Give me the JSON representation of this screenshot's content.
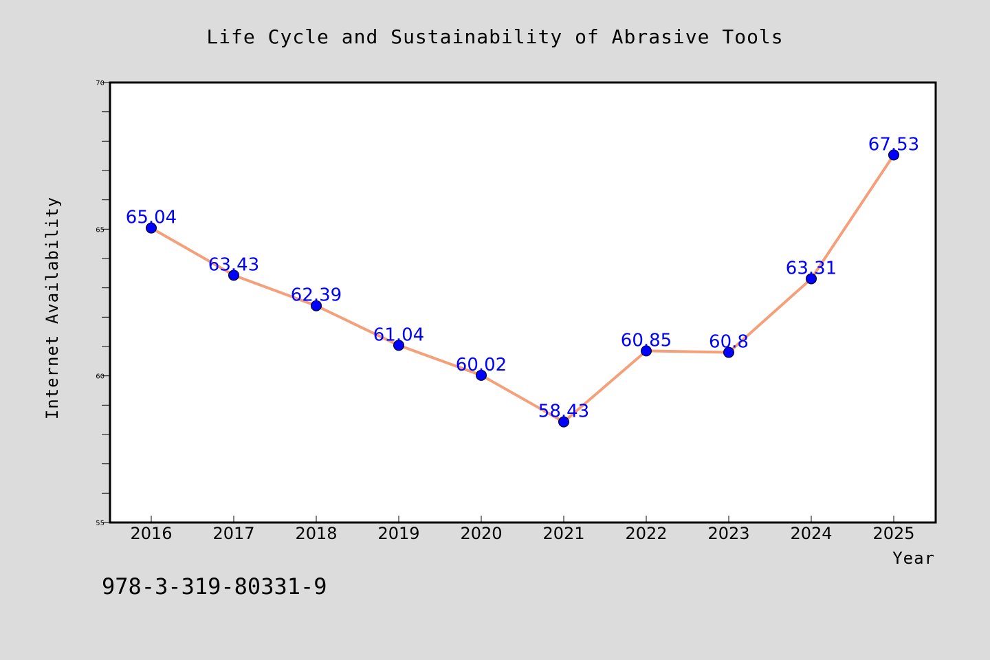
{
  "chart_data": {
    "type": "line",
    "title": "Life Cycle and Sustainability of Abrasive Tools",
    "xlabel": "Year",
    "ylabel": "Internet Availability",
    "x": [
      "2016",
      "2017",
      "2018",
      "2019",
      "2020",
      "2021",
      "2022",
      "2023",
      "2024",
      "2025"
    ],
    "values": [
      65.04,
      63.43,
      62.39,
      61.04,
      60.02,
      58.43,
      60.85,
      60.8,
      63.31,
      67.53
    ],
    "data_labels": [
      "65.04",
      "63.43",
      "62.39",
      "61.04",
      "60.02",
      "58.43",
      "60.85",
      "60.8",
      "63.31",
      "67.53"
    ],
    "ylim": [
      55,
      70
    ],
    "yticks": [
      "55",
      "60",
      "65",
      "70"
    ],
    "grid": false,
    "legend": "none",
    "line_color": "#f4a07a",
    "marker_color": "#0000ff",
    "label_color": "#0000ff",
    "background": "#dcdcdc",
    "plot_background": "#ffffff"
  },
  "footer": {
    "isbn": "978-3-319-80331-9"
  }
}
